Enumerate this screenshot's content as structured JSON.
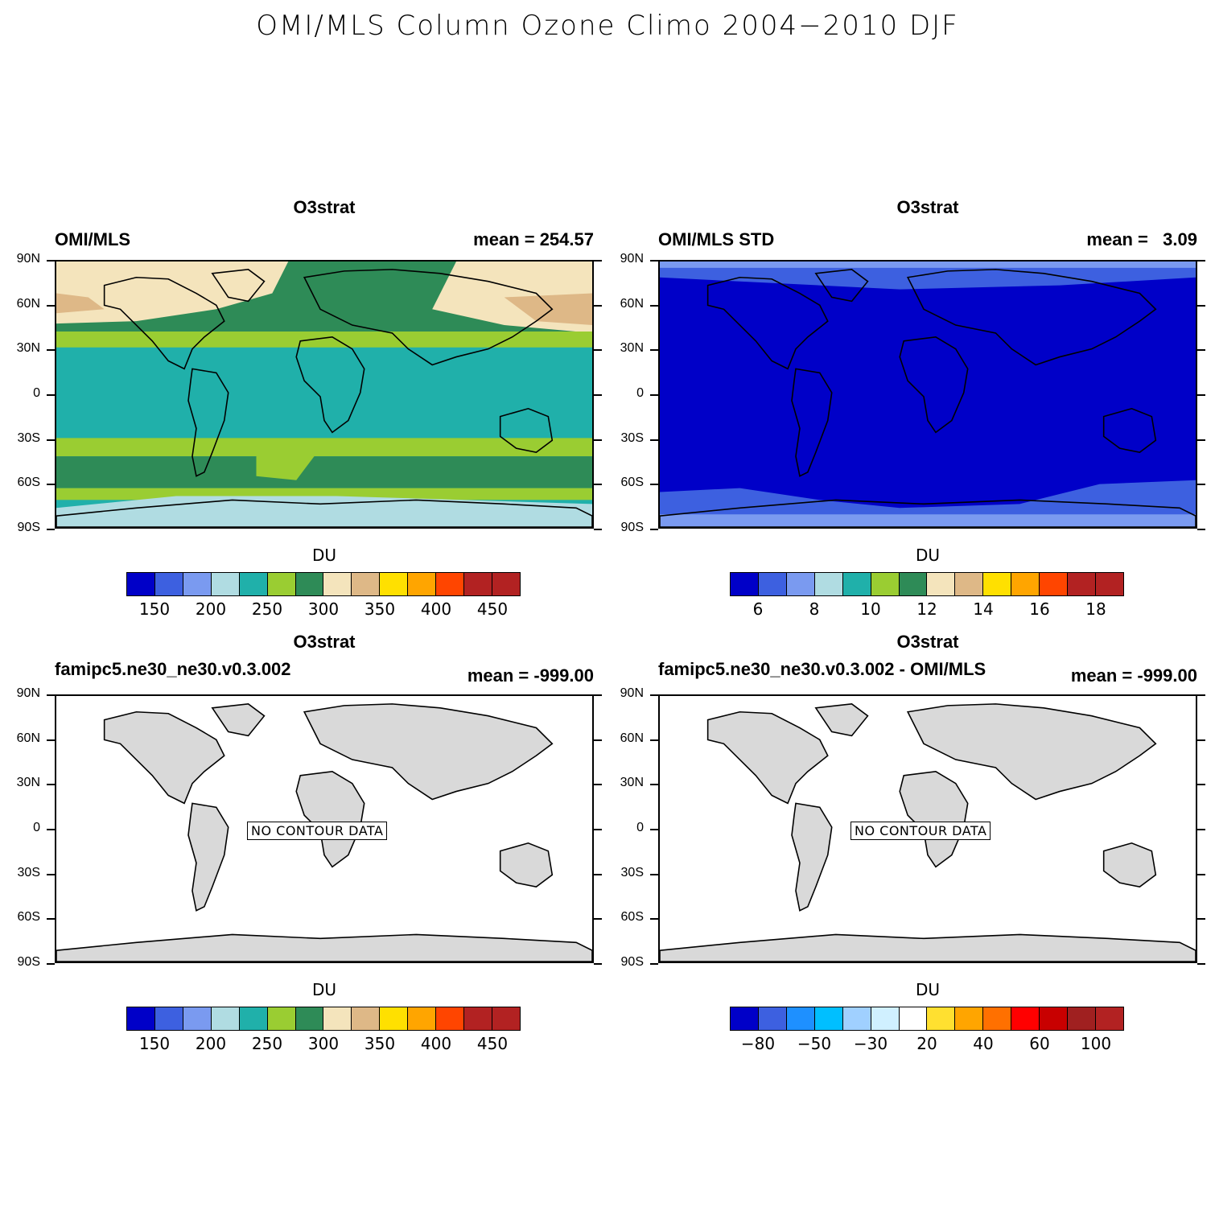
{
  "main_title": "OMI/MLS Column Ozone Climo 2004−2010 DJF",
  "lat_labels": [
    "90N",
    "60N",
    "30N",
    "0",
    "30S",
    "60S",
    "90S"
  ],
  "panels": [
    {
      "title": "O3strat",
      "left_label": "OMI/MLS",
      "right_label": "mean = 254.57",
      "units": "DU",
      "colors": [
        "#0000c8",
        "#3d60e0",
        "#7a9af0",
        "#b0dce2",
        "#20b0aa",
        "#9acd32",
        "#2e8b57",
        "#f4e4bc",
        "#deb887",
        "#ffe000",
        "#ffa500",
        "#ff4500",
        "#b22222",
        "#b22222"
      ],
      "ticks": [
        "150",
        "200",
        "250",
        "300",
        "350",
        "400",
        "450"
      ]
    },
    {
      "title": "O3strat",
      "left_label": "OMI/MLS STD",
      "right_label": "mean =   3.09",
      "units": "DU",
      "colors": [
        "#0000c8",
        "#3d60e0",
        "#7a9af0",
        "#b0dce2",
        "#20b0aa",
        "#9acd32",
        "#2e8b57",
        "#f4e4bc",
        "#deb887",
        "#ffe000",
        "#ffa500",
        "#ff4500",
        "#b22222",
        "#b22222"
      ],
      "ticks": [
        "6",
        "8",
        "10",
        "12",
        "14",
        "16",
        "18"
      ]
    },
    {
      "title": "O3strat",
      "left_label": "famipc5.ne30_ne30.v0.3.002",
      "right_label": "mean = -999.00",
      "units": "DU",
      "no_data": "NO CONTOUR DATA",
      "colors": [
        "#0000c8",
        "#3d60e0",
        "#7a9af0",
        "#b0dce2",
        "#20b0aa",
        "#9acd32",
        "#2e8b57",
        "#f4e4bc",
        "#deb887",
        "#ffe000",
        "#ffa500",
        "#ff4500",
        "#b22222",
        "#b22222"
      ],
      "ticks": [
        "150",
        "200",
        "250",
        "300",
        "350",
        "400",
        "450"
      ]
    },
    {
      "title": "O3strat",
      "left_label": "famipc5.ne30_ne30.v0.3.002 - OMI/MLS",
      "right_label": "mean = -999.00",
      "units": "DU",
      "no_data": "NO CONTOUR DATA",
      "colors": [
        "#0000c8",
        "#3d60e0",
        "#1e90ff",
        "#00bfff",
        "#a0d0ff",
        "#d0f0ff",
        "#ffffff",
        "#ffe030",
        "#ffa500",
        "#ff7000",
        "#ff0000",
        "#c80000",
        "#a02020",
        "#b22222"
      ],
      "ticks": [
        "−80",
        "−50",
        "−30",
        "20",
        "40",
        "60",
        "100"
      ]
    }
  ]
}
